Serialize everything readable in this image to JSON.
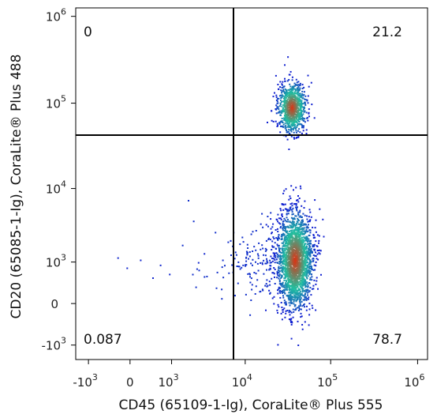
{
  "chart_data": {
    "type": "scatter",
    "subtype": "flow-cytometry-density-dot-plot",
    "xlabel": "CD45 (65109-1-Ig), CoraLite® Plus 555",
    "ylabel": "CD20 (65085-1-Ig), CoraLite® Plus 488",
    "x_scale": "biexponential",
    "y_scale": "biexponential",
    "x_ticks": [
      {
        "base": "-10",
        "exp": "3",
        "value": -1000
      },
      {
        "base": "0",
        "exp": "",
        "value": 0
      },
      {
        "base": "10",
        "exp": "3",
        "value": 1000
      },
      {
        "base": "10",
        "exp": "4",
        "value": 10000
      },
      {
        "base": "10",
        "exp": "5",
        "value": 100000
      },
      {
        "base": "10",
        "exp": "6",
        "value": 1000000
      }
    ],
    "y_ticks": [
      {
        "base": "-10",
        "exp": "3",
        "value": -1000
      },
      {
        "base": "0",
        "exp": "",
        "value": 0
      },
      {
        "base": "10",
        "exp": "3",
        "value": 1000
      },
      {
        "base": "10",
        "exp": "4",
        "value": 10000
      },
      {
        "base": "10",
        "exp": "5",
        "value": 100000
      },
      {
        "base": "10",
        "exp": "6",
        "value": 1000000
      }
    ],
    "gates": {
      "x_threshold": 3500,
      "y_threshold": 22000
    },
    "quadrants": {
      "top_left": "0",
      "top_right": "21.2",
      "bottom_left": "0.087",
      "bottom_right": "78.7"
    },
    "populations": [
      {
        "name_hidden": true,
        "cd45_center": 35000,
        "cd20_center": 90000,
        "description_quadrant": "top_right"
      },
      {
        "name_hidden": true,
        "cd45_center": 38000,
        "cd20_center": 1100,
        "description_quadrant": "bottom_right"
      }
    ],
    "colors": {
      "gate_line": "#000000",
      "density_low": "#1020d0",
      "density_mid": "#20c0a0",
      "density_high": "#e03010"
    }
  }
}
